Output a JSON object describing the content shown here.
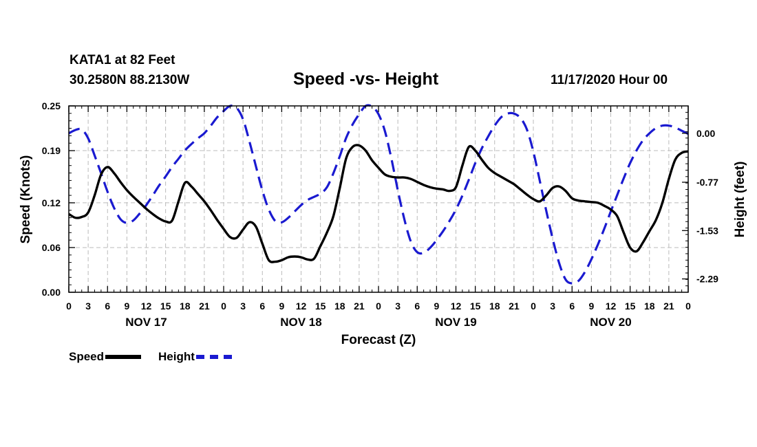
{
  "header": {
    "station": "KATA1 at 82 Feet",
    "coords": "30.2580N 88.2130W",
    "title": "Speed -vs- Height",
    "datetime": "11/17/2020 Hour 00"
  },
  "legend": {
    "speed_label": "Speed",
    "height_label": "Height"
  },
  "colors": {
    "speed": "#000000",
    "height": "#1a1ad0",
    "grid": "#bbbbbb"
  },
  "chart_data": {
    "type": "line",
    "title": "Speed -vs- Height",
    "xlabel": "Forecast (Z)",
    "ylabel": "Speed (Knots)",
    "y2label": "Height (feet)",
    "x_range_hours": [
      0,
      96
    ],
    "x_tick_labels": [
      "0",
      "3",
      "6",
      "9",
      "12",
      "15",
      "18",
      "21",
      "0",
      "3",
      "6",
      "9",
      "12",
      "15",
      "18",
      "21",
      "0",
      "3",
      "6",
      "9",
      "12",
      "15",
      "18",
      "21",
      "0",
      "3",
      "6",
      "9",
      "12",
      "15",
      "18",
      "21",
      "0"
    ],
    "date_labels": [
      {
        "hour": 12,
        "label": "NOV 17"
      },
      {
        "hour": 36,
        "label": "NOV 18"
      },
      {
        "hour": 60,
        "label": "NOV 19"
      },
      {
        "hour": 84,
        "label": "NOV 20"
      }
    ],
    "ylim": [
      0,
      0.25
    ],
    "y_ticks": [
      0.0,
      0.06,
      0.12,
      0.19,
      0.25
    ],
    "y_tick_labels": [
      "0.00",
      "0.06",
      "0.12",
      "0.19",
      "0.25"
    ],
    "y2lim": [
      -2.5,
      0.43
    ],
    "y2_ticks": [
      0.0,
      -0.77,
      -1.53,
      -2.29
    ],
    "y2_tick_labels": [
      "0.00",
      "-0.77",
      "-1.53",
      "-2.29"
    ],
    "grid": true,
    "series": [
      {
        "name": "Speed",
        "axis": "left",
        "style": "solid",
        "x": [
          0,
          1,
          2,
          3,
          4,
          5,
          6,
          7,
          8,
          9,
          10,
          11,
          12,
          13,
          14,
          15,
          16,
          17,
          18,
          19,
          20,
          21,
          22,
          23,
          24,
          25,
          26,
          27,
          28,
          29,
          30,
          31,
          32,
          33,
          34,
          35,
          36,
          37,
          38,
          39,
          40,
          41,
          42,
          43,
          44,
          45,
          46,
          47,
          48,
          49,
          50,
          51,
          52,
          53,
          54,
          55,
          56,
          57,
          58,
          59,
          60,
          61,
          62,
          63,
          64,
          65,
          66,
          67,
          68,
          69,
          70,
          71,
          72,
          73,
          74,
          75,
          76,
          77,
          78,
          79,
          80,
          81,
          82,
          83,
          84,
          85,
          86,
          87,
          88,
          89,
          90,
          91,
          92,
          93,
          94,
          95,
          96
        ],
        "values": [
          0.105,
          0.1,
          0.101,
          0.107,
          0.13,
          0.158,
          0.168,
          0.16,
          0.148,
          0.137,
          0.128,
          0.12,
          0.112,
          0.105,
          0.099,
          0.095,
          0.096,
          0.122,
          0.147,
          0.142,
          0.132,
          0.122,
          0.11,
          0.097,
          0.085,
          0.074,
          0.073,
          0.084,
          0.094,
          0.088,
          0.065,
          0.043,
          0.041,
          0.043,
          0.047,
          0.048,
          0.047,
          0.044,
          0.045,
          0.062,
          0.08,
          0.102,
          0.14,
          0.18,
          0.195,
          0.197,
          0.19,
          0.177,
          0.167,
          0.158,
          0.155,
          0.154,
          0.154,
          0.152,
          0.148,
          0.144,
          0.141,
          0.139,
          0.138,
          0.136,
          0.141,
          0.17,
          0.195,
          0.19,
          0.178,
          0.167,
          0.16,
          0.155,
          0.15,
          0.145,
          0.138,
          0.131,
          0.125,
          0.122,
          0.13,
          0.14,
          0.142,
          0.136,
          0.126,
          0.123,
          0.122,
          0.121,
          0.12,
          0.116,
          0.111,
          0.102,
          0.08,
          0.06,
          0.055,
          0.067,
          0.082,
          0.097,
          0.12,
          0.152,
          0.178,
          0.187,
          0.189
        ]
      },
      {
        "name": "Height",
        "axis": "right",
        "style": "dashed",
        "x": [
          0,
          1,
          2,
          3,
          4,
          5,
          6,
          7,
          8,
          9,
          10,
          11,
          12,
          13,
          14,
          15,
          16,
          17,
          18,
          19,
          20,
          21,
          22,
          23,
          24,
          25,
          26,
          27,
          28,
          29,
          30,
          31,
          32,
          33,
          34,
          35,
          36,
          37,
          38,
          39,
          40,
          41,
          42,
          43,
          44,
          45,
          46,
          47,
          48,
          49,
          50,
          51,
          52,
          53,
          54,
          55,
          56,
          57,
          58,
          59,
          60,
          61,
          62,
          63,
          64,
          65,
          66,
          67,
          68,
          69,
          70,
          71,
          72,
          73,
          74,
          75,
          76,
          77,
          78,
          79,
          80,
          81,
          82,
          83,
          84,
          85,
          86,
          87,
          88,
          89,
          90,
          91,
          92,
          93,
          94,
          95,
          96
        ],
        "values": [
          0.0,
          0.05,
          0.06,
          -0.08,
          -0.35,
          -0.63,
          -0.92,
          -1.17,
          -1.35,
          -1.41,
          -1.37,
          -1.26,
          -1.13,
          -0.98,
          -0.82,
          -0.68,
          -0.53,
          -0.4,
          -0.27,
          -0.17,
          -0.08,
          0.0,
          0.12,
          0.25,
          0.35,
          0.43,
          0.4,
          0.22,
          -0.13,
          -0.52,
          -0.9,
          -1.2,
          -1.38,
          -1.4,
          -1.33,
          -1.23,
          -1.13,
          -1.05,
          -1.0,
          -0.95,
          -0.85,
          -0.63,
          -0.36,
          -0.07,
          0.14,
          0.3,
          0.43,
          0.42,
          0.3,
          0.03,
          -0.4,
          -0.9,
          -1.35,
          -1.7,
          -1.87,
          -1.88,
          -1.8,
          -1.68,
          -1.54,
          -1.38,
          -1.2,
          -0.98,
          -0.73,
          -0.47,
          -0.24,
          -0.05,
          0.12,
          0.25,
          0.31,
          0.31,
          0.24,
          0.06,
          -0.29,
          -0.75,
          -1.22,
          -1.66,
          -2.04,
          -2.3,
          -2.36,
          -2.32,
          -2.18,
          -1.98,
          -1.75,
          -1.5,
          -1.23,
          -0.97,
          -0.71,
          -0.47,
          -0.27,
          -0.11,
          0.0,
          0.08,
          0.12,
          0.12,
          0.09,
          0.04,
          -0.01
        ]
      }
    ]
  }
}
